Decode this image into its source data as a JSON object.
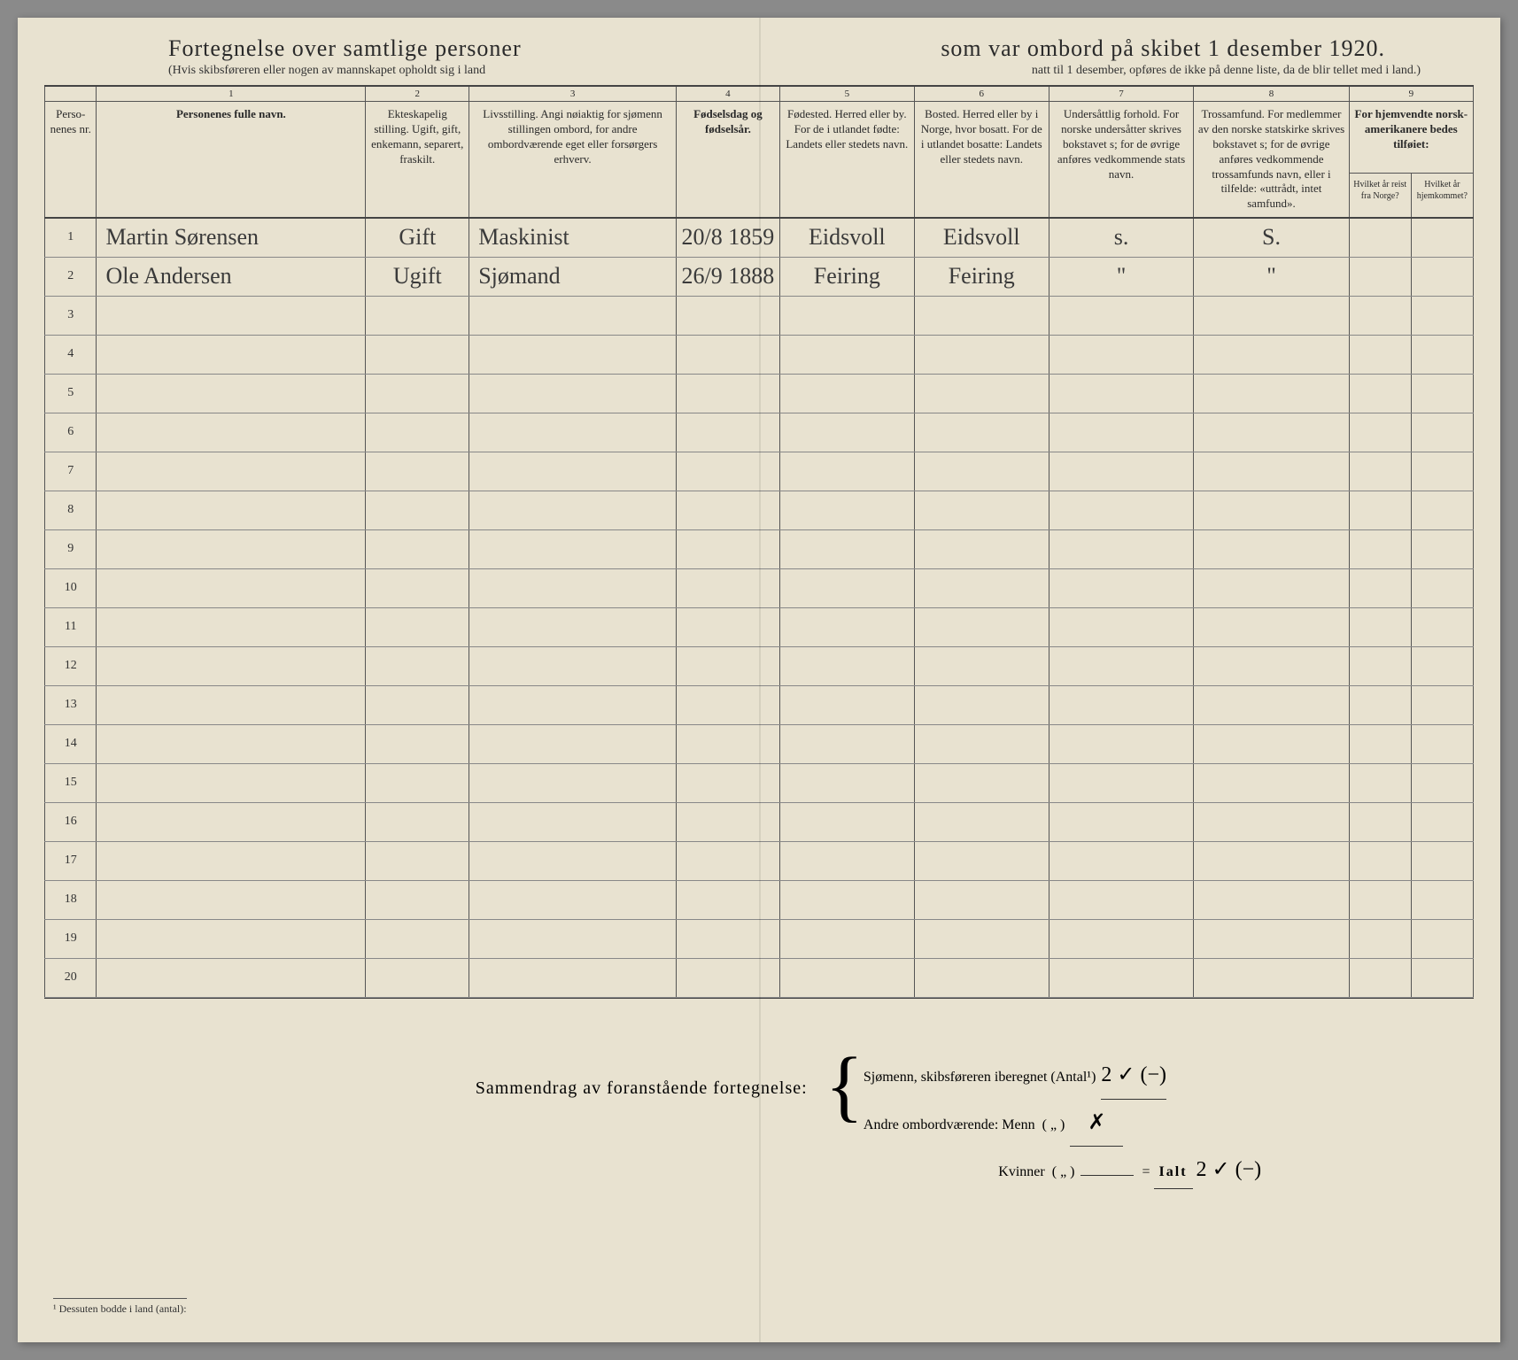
{
  "title_left": "Fortegnelse over samtlige personer",
  "title_right": "som var ombord på skibet 1 desember 1920.",
  "subtitle_left": "(Hvis skibsføreren eller nogen av mannskapet opholdt sig i land",
  "subtitle_right": "natt til 1 desember, opføres de ikke på denne liste, da de blir tellet med i land.)",
  "col_numbers": [
    "",
    "1",
    "2",
    "3",
    "4",
    "5",
    "6",
    "7",
    "8",
    "9"
  ],
  "headers": {
    "nr": "Perso-\nnenes\nnr.",
    "name": "Personenes fulle navn.",
    "marital": "Ekteskapelig stilling.\nUgift, gift, enkemann, separert, fraskilt.",
    "occupation": "Livsstilling.\nAngi nøiaktig for sjømenn stillingen ombord, for andre ombordværende eget eller forsørgers erhverv.",
    "birthdate": "Fødselsdag og fødselsår.",
    "birthplace": "Fødested.\nHerred eller by.\nFor de i utlandet fødte: Landets eller stedets navn.",
    "residence": "Bosted.\nHerred eller by i Norge, hvor bosatt.\nFor de i utlandet bosatte: Landets eller stedets navn.",
    "citizenship": "Undersåttlig forhold.\nFor norske undersåtter skrives bokstavet s; for de øvrige anføres vedkommende stats navn.",
    "religion": "Trossamfund.\nFor medlemmer av den norske statskirke skrives bokstavet s; for de øvrige anføres vedkommende trossamfunds navn, eller i tilfelde: «uttrådt, intet samfund».",
    "returned": "For hjemvendte norsk-amerikanere bedes tilføiet:",
    "returned_a": "Hvilket år reist fra Norge?",
    "returned_b": "Hvilket år hjemkommet?"
  },
  "rows": [
    {
      "nr": "1",
      "name": "Martin Sørensen",
      "marital": "Gift",
      "occup": "Maskinist",
      "bdate": "20/8 1859",
      "bplace": "Eidsvoll",
      "res": "Eidsvoll",
      "cit": "s.",
      "rel": "S.",
      "ra": "",
      "rb": ""
    },
    {
      "nr": "2",
      "name": "Ole Andersen",
      "marital": "Ugift",
      "occup": "Sjømand",
      "bdate": "26/9 1888",
      "bplace": "Feiring",
      "res": "Feiring",
      "cit": "\"",
      "rel": "\"",
      "ra": "",
      "rb": ""
    }
  ],
  "empty_rows": [
    "3",
    "4",
    "5",
    "6",
    "7",
    "8",
    "9",
    "10",
    "11",
    "12",
    "13",
    "14",
    "15",
    "16",
    "17",
    "18",
    "19",
    "20"
  ],
  "summary_label": "Sammendrag av foranstående fortegnelse:",
  "summary": {
    "line1_lbl": "Sjømenn, skibsføreren iberegnet (Antal¹)",
    "line1_val": "2    ✓   (−)",
    "line2_lbl": "Andre ombordværende: Menn",
    "line2_paren": "( „ )",
    "line2_val": "✗",
    "line3_lbl": "Kvinner",
    "line3_paren": "( „ )",
    "ialt_lbl": "Ialt",
    "ialt_val": "2   ✓   (−)"
  },
  "footnote": "¹  Dessuten bodde i land (antal):",
  "colwidths": {
    "nr": "50px",
    "name": "260px",
    "marital": "100px",
    "occup": "200px",
    "bdate": "100px",
    "bplace": "130px",
    "res": "130px",
    "cit": "140px",
    "rel": "150px",
    "ra": "60px",
    "rb": "60px"
  }
}
